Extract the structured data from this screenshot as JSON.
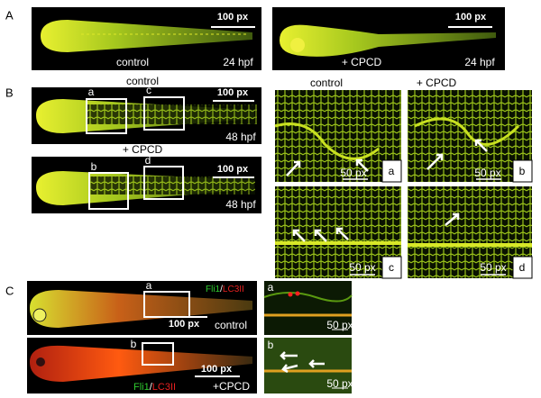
{
  "panels": {
    "A": {
      "label": "A",
      "images": [
        {
          "scale": "100 px",
          "condition": "control",
          "stage": "24 hpf"
        },
        {
          "scale": "100 px",
          "condition": "+ CPCD",
          "stage": "24 hpf"
        }
      ]
    },
    "B": {
      "label": "B",
      "whole": [
        {
          "title": "control",
          "boxes": [
            "a",
            "c"
          ],
          "scale": "100 px",
          "stage": "48 hpf"
        },
        {
          "title": "+ CPCD",
          "boxes": [
            "b",
            "d"
          ],
          "scale": "100 px",
          "stage": "48 hpf"
        }
      ],
      "zoom_headers": [
        "control",
        "+ CPCD"
      ],
      "zooms": [
        {
          "label": "a",
          "scale": "50 px"
        },
        {
          "label": "b",
          "scale": "50 px"
        },
        {
          "label": "c",
          "scale": "50 px"
        },
        {
          "label": "d",
          "scale": "50 px"
        }
      ]
    },
    "C": {
      "label": "C",
      "rows": [
        {
          "marker": [
            "Fli1",
            "/",
            "LC3II"
          ],
          "box": "a",
          "scale": "100 px",
          "condition": "control",
          "zoom_label": "a",
          "zoom_scale": "50 px"
        },
        {
          "marker": [
            "Fli1",
            "/",
            "LC3II"
          ],
          "box": "b",
          "scale": "100 px",
          "condition": "+CPCD",
          "zoom_label": "b",
          "zoom_scale": "50 px"
        }
      ]
    }
  }
}
